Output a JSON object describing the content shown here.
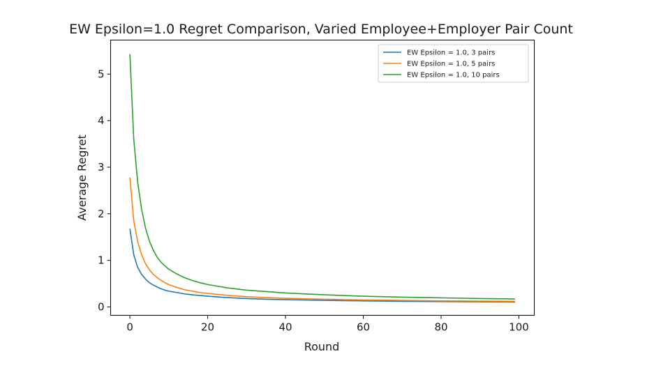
{
  "chart_data": {
    "type": "line",
    "title": "EW Epsilon=1.0 Regret Comparison, Varied Employee+Employer Pair Count",
    "xlabel": "Round",
    "ylabel": "Average Regret",
    "xlim": [
      -4.95,
      103.95
    ],
    "ylim": [
      -0.18,
      5.73
    ],
    "xticks": [
      0,
      20,
      40,
      60,
      80,
      100
    ],
    "yticks": [
      0,
      1,
      2,
      3,
      4,
      5
    ],
    "grid": false,
    "legend_position": "top-right",
    "series": [
      {
        "name": "EW Epsilon = 1.0, 3 pairs",
        "color": "#1f77b4",
        "x": [
          0,
          1,
          2,
          3,
          4,
          5,
          6,
          7,
          8,
          9,
          10,
          12,
          14,
          16,
          18,
          20,
          25,
          30,
          35,
          40,
          50,
          60,
          70,
          80,
          90,
          99
        ],
        "y": [
          1.68,
          1.12,
          0.85,
          0.7,
          0.6,
          0.52,
          0.47,
          0.43,
          0.39,
          0.36,
          0.34,
          0.31,
          0.28,
          0.26,
          0.245,
          0.23,
          0.2,
          0.18,
          0.165,
          0.155,
          0.14,
          0.13,
          0.12,
          0.115,
          0.11,
          0.105
        ]
      },
      {
        "name": "EW Epsilon = 1.0, 5 pairs",
        "color": "#ff7f0e",
        "x": [
          0,
          1,
          2,
          3,
          4,
          5,
          6,
          7,
          8,
          9,
          10,
          12,
          14,
          16,
          18,
          20,
          25,
          30,
          35,
          40,
          50,
          60,
          70,
          80,
          90,
          99
        ],
        "y": [
          2.78,
          1.85,
          1.4,
          1.12,
          0.93,
          0.8,
          0.7,
          0.63,
          0.57,
          0.52,
          0.48,
          0.42,
          0.37,
          0.34,
          0.31,
          0.29,
          0.25,
          0.22,
          0.2,
          0.185,
          0.165,
          0.15,
          0.14,
          0.13,
          0.125,
          0.12
        ]
      },
      {
        "name": "EW Epsilon = 1.0, 10 pairs",
        "color": "#2ca02c",
        "x": [
          0,
          1,
          2,
          3,
          4,
          5,
          6,
          7,
          8,
          9,
          10,
          12,
          14,
          16,
          18,
          20,
          25,
          30,
          35,
          40,
          50,
          60,
          70,
          80,
          90,
          99
        ],
        "y": [
          5.43,
          3.6,
          2.68,
          2.1,
          1.7,
          1.42,
          1.22,
          1.07,
          0.96,
          0.88,
          0.81,
          0.71,
          0.63,
          0.57,
          0.52,
          0.48,
          0.41,
          0.36,
          0.33,
          0.3,
          0.26,
          0.23,
          0.21,
          0.195,
          0.18,
          0.17
        ]
      }
    ]
  }
}
